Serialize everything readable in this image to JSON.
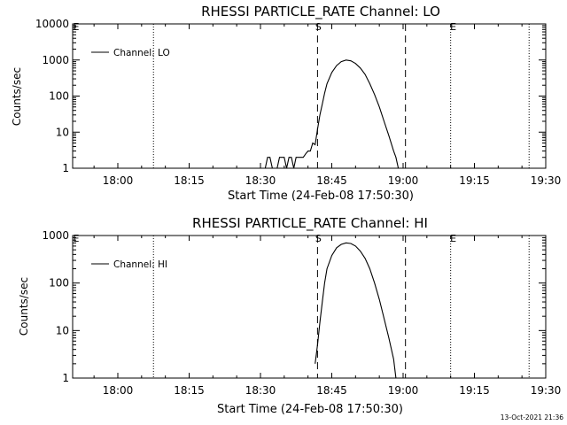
{
  "footer": {
    "timestamp": "13-Oct-2021 21:36"
  },
  "marker_labels": {
    "start": "S",
    "end": "E",
    "edge": "E"
  },
  "chart_data": [
    {
      "type": "line",
      "title": "RHESSI PARTICLE_RATE Channel: LO",
      "xlabel": "Start Time (24-Feb-08 17:50:30)",
      "ylabel": "Counts/sec",
      "yscale": "log",
      "xlim": [
        "17:50:30",
        "19:30:00"
      ],
      "ylim": [
        1,
        10000
      ],
      "x_ticks": [
        "18:00",
        "18:15",
        "18:30",
        "18:45",
        "19:00",
        "19:15",
        "19:30"
      ],
      "y_ticks": [
        "1",
        "10",
        "100",
        "1000",
        "10000"
      ],
      "legend": {
        "position": "top-left",
        "entries": [
          "Channel: LO"
        ]
      },
      "vlines": {
        "dotted": [
          "18:07:30",
          "19:10:00",
          "19:26:30"
        ],
        "dashed": [
          "18:42:00",
          "19:00:30"
        ]
      },
      "series": [
        {
          "name": "Channel: LO",
          "x": [
            "18:31:00",
            "18:31:30",
            "18:32:00",
            "18:32:30",
            "18:33:00",
            "18:33:30",
            "18:34:00",
            "18:34:30",
            "18:35:00",
            "18:35:30",
            "18:36:00",
            "18:36:30",
            "18:37:00",
            "18:37:30",
            "18:38:00",
            "18:38:30",
            "18:39:00",
            "18:39:30",
            "18:40:00",
            "18:40:30",
            "18:41:00",
            "18:41:30",
            "18:42:00",
            "18:42:30",
            "18:43:00",
            "18:43:30",
            "18:44:00",
            "18:45:00",
            "18:46:00",
            "18:47:00",
            "18:48:00",
            "18:49:00",
            "18:50:00",
            "18:51:00",
            "18:52:00",
            "18:53:00",
            "18:54:00",
            "18:55:00",
            "18:56:00",
            "18:57:00",
            "18:58:00",
            "18:58:30",
            "18:59:00"
          ],
          "values": [
            1,
            2,
            2,
            1,
            1,
            1,
            2,
            2,
            2,
            1,
            2,
            2,
            1,
            2,
            2,
            2,
            2,
            2.5,
            3,
            3,
            5,
            4.5,
            12,
            30,
            60,
            120,
            220,
            450,
            700,
            900,
            1000,
            950,
            800,
            600,
            400,
            220,
            110,
            50,
            20,
            8,
            3,
            2,
            1
          ]
        }
      ]
    },
    {
      "type": "line",
      "title": "RHESSI PARTICLE_RATE Channel: HI",
      "xlabel": "Start Time (24-Feb-08 17:50:30)",
      "ylabel": "Counts/sec",
      "yscale": "log",
      "xlim": [
        "17:50:30",
        "19:30:00"
      ],
      "ylim": [
        1,
        1000
      ],
      "x_ticks": [
        "18:00",
        "18:15",
        "18:30",
        "18:45",
        "19:00",
        "19:15",
        "19:30"
      ],
      "y_ticks": [
        "1",
        "10",
        "100",
        "1000"
      ],
      "legend": {
        "position": "top-left",
        "entries": [
          "Channel: HI"
        ]
      },
      "vlines": {
        "dotted": [
          "18:07:30",
          "19:10:00",
          "19:26:30"
        ],
        "dashed": [
          "18:42:00",
          "19:00:30"
        ]
      },
      "series": [
        {
          "name": "Channel: HI",
          "x": [
            "18:41:30",
            "18:42:00",
            "18:42:30",
            "18:43:00",
            "18:43:30",
            "18:44:00",
            "18:45:00",
            "18:46:00",
            "18:47:00",
            "18:48:00",
            "18:49:00",
            "18:50:00",
            "18:51:00",
            "18:52:00",
            "18:53:00",
            "18:54:00",
            "18:55:00",
            "18:56:00",
            "18:57:00",
            "18:58:00",
            "18:58:30"
          ],
          "values": [
            2,
            5,
            15,
            40,
            100,
            200,
            380,
            550,
            650,
            700,
            680,
            600,
            470,
            330,
            200,
            100,
            45,
            18,
            7,
            2.5,
            1
          ]
        }
      ]
    }
  ]
}
